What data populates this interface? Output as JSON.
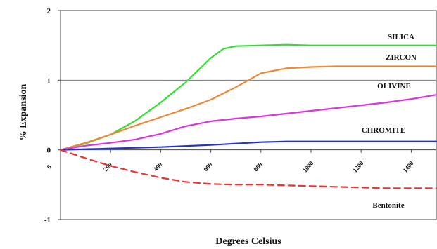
{
  "chart_data": {
    "type": "line",
    "title": "",
    "xlabel": "Degrees Celsius",
    "ylabel": "% Expansion",
    "xlim": [
      0,
      1500
    ],
    "ylim": [
      -1,
      2
    ],
    "x_ticks": [
      "0",
      "200",
      "400",
      "600",
      "800",
      "1000",
      "1200",
      "1400"
    ],
    "y_ticks": [
      "2",
      "1",
      "0",
      "-1"
    ],
    "gridlines_y": [
      1
    ],
    "series": [
      {
        "name": "SILICA",
        "color": "#33dd33",
        "dash": "solid",
        "label_color": "#111111",
        "points": [
          [
            0,
            0
          ],
          [
            100,
            0.09
          ],
          [
            200,
            0.22
          ],
          [
            300,
            0.42
          ],
          [
            400,
            0.68
          ],
          [
            500,
            0.97
          ],
          [
            600,
            1.32
          ],
          [
            650,
            1.45
          ],
          [
            700,
            1.49
          ],
          [
            800,
            1.5
          ],
          [
            900,
            1.51
          ],
          [
            1000,
            1.5
          ],
          [
            1100,
            1.5
          ],
          [
            1200,
            1.5
          ],
          [
            1300,
            1.5
          ],
          [
            1400,
            1.5
          ],
          [
            1500,
            1.5
          ]
        ]
      },
      {
        "name": "ZIRCON",
        "color": "#ee8833",
        "dash": "solid",
        "label_color": "#111111",
        "points": [
          [
            0,
            0
          ],
          [
            100,
            0.1
          ],
          [
            200,
            0.22
          ],
          [
            300,
            0.35
          ],
          [
            400,
            0.47
          ],
          [
            500,
            0.59
          ],
          [
            600,
            0.72
          ],
          [
            700,
            0.9
          ],
          [
            800,
            1.1
          ],
          [
            900,
            1.17
          ],
          [
            1000,
            1.19
          ],
          [
            1100,
            1.2
          ],
          [
            1200,
            1.2
          ],
          [
            1300,
            1.2
          ],
          [
            1400,
            1.2
          ],
          [
            1500,
            1.2
          ]
        ]
      },
      {
        "name": "OLIVINE",
        "color": "#dd33dd",
        "dash": "solid",
        "label_color": "#111111",
        "points": [
          [
            0,
            0
          ],
          [
            100,
            0.06
          ],
          [
            200,
            0.1
          ],
          [
            300,
            0.15
          ],
          [
            400,
            0.23
          ],
          [
            500,
            0.34
          ],
          [
            600,
            0.41
          ],
          [
            700,
            0.45
          ],
          [
            800,
            0.48
          ],
          [
            900,
            0.52
          ],
          [
            1000,
            0.56
          ],
          [
            1100,
            0.6
          ],
          [
            1200,
            0.64
          ],
          [
            1300,
            0.68
          ],
          [
            1400,
            0.73
          ],
          [
            1500,
            0.79
          ]
        ]
      },
      {
        "name": "CHROMITE",
        "color": "#2233cc",
        "dash": "solid",
        "label_color": "#111111",
        "points": [
          [
            0,
            0
          ],
          [
            200,
            0.02
          ],
          [
            400,
            0.04
          ],
          [
            600,
            0.07
          ],
          [
            700,
            0.09
          ],
          [
            800,
            0.11
          ],
          [
            900,
            0.12
          ],
          [
            1000,
            0.12
          ],
          [
            1200,
            0.12
          ],
          [
            1400,
            0.12
          ],
          [
            1500,
            0.12
          ]
        ]
      },
      {
        "name": "Bentonite",
        "color": "#ee3333",
        "dash": "dashed",
        "label_color": "#ee3333",
        "points": [
          [
            0,
            0
          ],
          [
            100,
            -0.12
          ],
          [
            200,
            -0.23
          ],
          [
            300,
            -0.32
          ],
          [
            400,
            -0.4
          ],
          [
            500,
            -0.46
          ],
          [
            600,
            -0.49
          ],
          [
            700,
            -0.5
          ],
          [
            800,
            -0.5
          ],
          [
            900,
            -0.51
          ],
          [
            1000,
            -0.52
          ],
          [
            1100,
            -0.53
          ],
          [
            1200,
            -0.54
          ],
          [
            1300,
            -0.55
          ],
          [
            1400,
            -0.55
          ],
          [
            1500,
            -0.55
          ]
        ]
      }
    ]
  }
}
